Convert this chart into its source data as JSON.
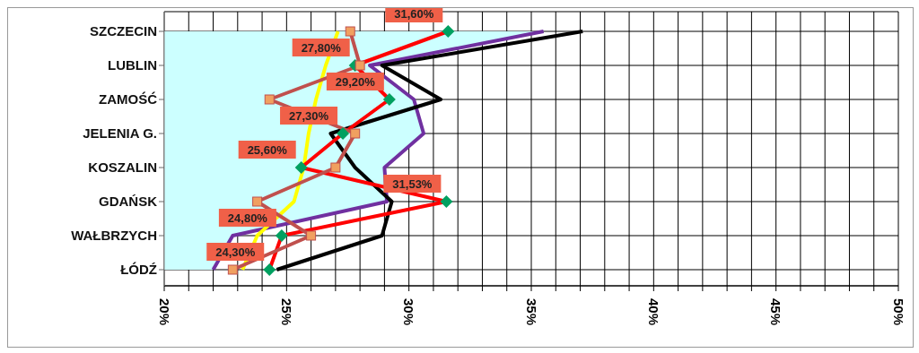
{
  "chart_data": {
    "type": "line",
    "orientation": "horizontal",
    "categories": [
      "SZCZECIN",
      "LUBLIN",
      "ZAMOŚĆ",
      "JELENIA G.",
      "KOSZALIN",
      "GDAŃSK",
      "WAŁBRZYCH",
      "ŁÓDŹ"
    ],
    "series": [
      {
        "type": "area",
        "color": "#ccffff",
        "marker": "none",
        "values": [
          35.5,
          28.4,
          30.2,
          30.6,
          29.0,
          29.1,
          22.8,
          22.0
        ]
      },
      {
        "color": "#7030a0",
        "marker": "none",
        "values": [
          35.5,
          28.4,
          30.2,
          30.6,
          29.0,
          29.1,
          22.8,
          22.0
        ]
      },
      {
        "color": "#ffff00",
        "marker": "none",
        "values": [
          27.1,
          26.6,
          26.2,
          25.9,
          25.7,
          25.3,
          23.8,
          23.2
        ]
      },
      {
        "color": "#000000",
        "marker": "none",
        "values": [
          37.1,
          28.9,
          31.3,
          26.8,
          27.8,
          29.3,
          28.9,
          24.6
        ]
      },
      {
        "color": "#ff0000",
        "marker": "diamond",
        "values": [
          31.6,
          27.8,
          29.2,
          27.3,
          25.6,
          31.53,
          24.8,
          24.3
        ],
        "value_labels": [
          "31,60%",
          "27,80%",
          "29,20%",
          "27,30%",
          "25,60%",
          "31,53%",
          "24,80%",
          "24,30%"
        ]
      },
      {
        "color": "#c0504d",
        "marker": "square",
        "values": [
          27.6,
          28.0,
          24.3,
          27.8,
          27.0,
          23.8,
          26.0,
          22.8
        ]
      }
    ],
    "xlim": [
      20,
      50
    ],
    "xticks": [
      {
        "value": 20,
        "label": "20%"
      },
      {
        "value": 21,
        "label": null
      },
      {
        "value": 22,
        "label": null
      },
      {
        "value": 23,
        "label": null
      },
      {
        "value": 24,
        "label": null
      },
      {
        "value": 25,
        "label": "25%"
      },
      {
        "value": 26,
        "label": null
      },
      {
        "value": 27,
        "label": null
      },
      {
        "value": 28,
        "label": null
      },
      {
        "value": 29,
        "label": null
      },
      {
        "value": 30,
        "label": "30%"
      },
      {
        "value": 31,
        "label": null
      },
      {
        "value": 32,
        "label": null
      },
      {
        "value": 33,
        "label": null
      },
      {
        "value": 34,
        "label": null
      },
      {
        "value": 35,
        "label": "35%"
      },
      {
        "value": 36,
        "label": null
      },
      {
        "value": 37,
        "label": null
      },
      {
        "value": 38,
        "label": null
      },
      {
        "value": 39,
        "label": null
      },
      {
        "value": 40,
        "label": "40%"
      },
      {
        "value": 41,
        "label": null
      },
      {
        "value": 42,
        "label": null
      },
      {
        "value": 43,
        "label": null
      },
      {
        "value": 44,
        "label": null
      },
      {
        "value": 45,
        "label": "45%"
      },
      {
        "value": 46,
        "label": null
      },
      {
        "value": 47,
        "label": null
      },
      {
        "value": 48,
        "label": null
      },
      {
        "value": 49,
        "label": null
      },
      {
        "value": 50,
        "label": "50%"
      }
    ],
    "grid": true
  }
}
